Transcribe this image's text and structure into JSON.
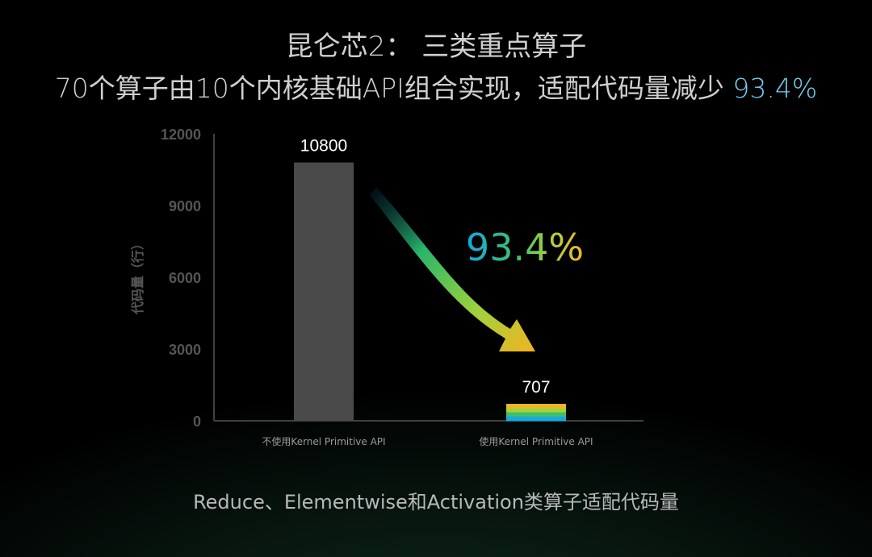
{
  "page": {
    "title": "昆仑芯2： 三类重点算子",
    "subtitle_text": "70个算子由10个内核基础API组合实现，适配代码量减少",
    "subtitle_highlight": "93.4%",
    "caption": "Reduce、Elementwise和Activation类算子适配代码量"
  },
  "chart_data": {
    "type": "bar",
    "categories": [
      "不使用Kernel Primitive API",
      "使用Kernel Primitive API"
    ],
    "values": [
      10800,
      707
    ],
    "data_labels": [
      "10800",
      "707"
    ],
    "ylabel": "代码量（行）",
    "ylim": [
      0,
      12000
    ],
    "yticks": [
      0,
      3000,
      6000,
      9000,
      12000
    ],
    "grid": false,
    "annotation": "93.4%",
    "colors": {
      "bar_without": "#4a4a4a",
      "bar_with_stripes": [
        "#18a8df",
        "#3fbf6a",
        "#a6d13a",
        "#f0b429"
      ],
      "axis": "#555555",
      "tick_text": "#555555",
      "arrow_gradient": [
        "#0a3a55",
        "#28b56a",
        "#9fd23c",
        "#f2b320"
      ],
      "annotation_gradient": [
        "#12a7e0",
        "#3cc46a",
        "#b8d03a",
        "#f3b52a"
      ]
    }
  }
}
